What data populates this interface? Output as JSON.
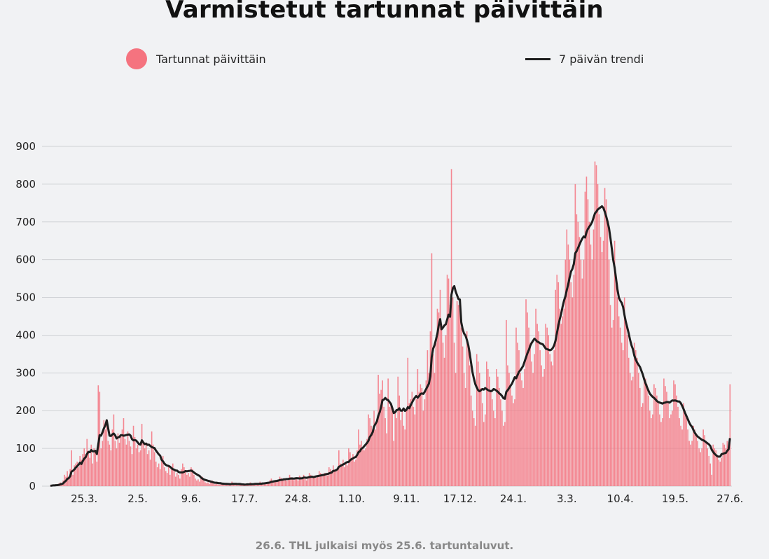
{
  "title": "Varmistetut tartunnat päivittäin",
  "legend": {
    "bars": "Tartunnat päivittäin",
    "line": "7 päivän trendi"
  },
  "note": "26.6. THL julkaisi myös 25.6. tartuntaluvut.",
  "colors": {
    "bars": "#f5737f",
    "line": "#1e1e1e",
    "grid": "#cfd1d5",
    "background": "#f1f2f4"
  },
  "chart_data": {
    "type": "bar",
    "title": "Varmistetut tartunnat päivittäin",
    "xlabel": "",
    "ylabel": "",
    "ylim": [
      0,
      900
    ],
    "yticks": [
      0,
      100,
      200,
      300,
      400,
      500,
      600,
      700,
      800,
      900
    ],
    "grid": true,
    "legend_position": "top",
    "start_date": "2020-03-01",
    "xticks": [
      {
        "date": "2020-03-25",
        "label": "25.3."
      },
      {
        "date": "2020-05-02",
        "label": "2.5."
      },
      {
        "date": "2020-06-09",
        "label": "9.6."
      },
      {
        "date": "2020-07-17",
        "label": "17.7."
      },
      {
        "date": "2020-08-24",
        "label": "24.8."
      },
      {
        "date": "2020-10-01",
        "label": "1.10."
      },
      {
        "date": "2020-11-09",
        "label": "9.11."
      },
      {
        "date": "2020-12-17",
        "label": "17.12."
      },
      {
        "date": "2021-01-24",
        "label": "24.1."
      },
      {
        "date": "2021-03-03",
        "label": "3.3."
      },
      {
        "date": "2021-04-10",
        "label": "10.4."
      },
      {
        "date": "2021-05-19",
        "label": "19.5."
      },
      {
        "date": "2021-06-27",
        "label": "27.6."
      }
    ],
    "series": [
      {
        "name": "Tartunnat päivittäin",
        "type": "bar",
        "values": [
          1,
          2,
          3,
          2,
          5,
          4,
          7,
          10,
          8,
          15,
          30,
          25,
          40,
          20,
          45,
          95,
          30,
          55,
          60,
          65,
          50,
          80,
          70,
          85,
          100,
          85,
          125,
          90,
          75,
          110,
          60,
          100,
          95,
          65,
          267,
          250,
          100,
          120,
          175,
          150,
          160,
          120,
          110,
          95,
          150,
          190,
          120,
          100,
          140,
          115,
          130,
          150,
          180,
          125,
          110,
          145,
          120,
          105,
          85,
          160,
          130,
          100,
          110,
          90,
          95,
          165,
          120,
          100,
          110,
          85,
          95,
          70,
          145,
          110,
          90,
          65,
          50,
          60,
          45,
          70,
          80,
          50,
          40,
          35,
          55,
          30,
          45,
          60,
          40,
          25,
          35,
          30,
          20,
          45,
          60,
          50,
          40,
          30,
          35,
          25,
          50,
          45,
          30,
          20,
          15,
          18,
          12,
          20,
          25,
          15,
          10,
          8,
          10,
          6,
          12,
          15,
          8,
          5,
          7,
          5,
          4,
          10,
          8,
          6,
          3,
          5,
          4,
          3,
          8,
          12,
          6,
          5,
          3,
          2,
          4,
          7,
          6,
          5,
          3,
          4,
          5,
          3,
          10,
          8,
          4,
          6,
          5,
          6,
          4,
          12,
          8,
          10,
          7,
          9,
          10,
          8,
          16,
          20,
          14,
          12,
          15,
          12,
          15,
          25,
          22,
          18,
          20,
          17,
          14,
          18,
          30,
          24,
          20,
          16,
          22,
          18,
          15,
          28,
          25,
          22,
          30,
          20,
          15,
          20,
          35,
          30,
          25,
          22,
          28,
          22,
          25,
          40,
          35,
          30,
          28,
          35,
          30,
          28,
          50,
          45,
          40,
          55,
          38,
          40,
          45,
          95,
          60,
          55,
          70,
          50,
          60,
          55,
          100,
          90,
          75,
          85,
          65,
          70,
          95,
          150,
          110,
          120,
          100,
          95,
          100,
          125,
          190,
          180,
          160,
          150,
          200,
          150,
          170,
          295,
          245,
          255,
          280,
          210,
          180,
          140,
          285,
          210,
          220,
          200,
          120,
          195,
          180,
          290,
          240,
          175,
          200,
          160,
          150,
          200,
          340,
          220,
          230,
          250,
          210,
          190,
          230,
          310,
          250,
          270,
          260,
          200,
          230,
          280,
          360,
          300,
          410,
          617,
          350,
          300,
          380,
          470,
          460,
          520,
          430,
          380,
          340,
          400,
          560,
          550,
          480,
          840,
          500,
          380,
          300,
          490,
          480,
          470,
          420,
          370,
          300,
          260,
          410,
          380,
          320,
          240,
          200,
          180,
          160,
          350,
          330,
          300,
          260,
          220,
          170,
          190,
          330,
          310,
          290,
          250,
          230,
          200,
          180,
          310,
          290,
          260,
          230,
          200,
          160,
          170,
          440,
          320,
          300,
          270,
          240,
          220,
          230,
          420,
          380,
          360,
          300,
          280,
          260,
          310,
          495,
          460,
          420,
          380,
          330,
          300,
          350,
          470,
          430,
          410,
          360,
          320,
          290,
          310,
          430,
          420,
          400,
          350,
          330,
          320,
          360,
          520,
          560,
          540,
          470,
          430,
          450,
          470,
          600,
          680,
          640,
          600,
          540,
          500,
          560,
          800,
          720,
          700,
          660,
          600,
          550,
          600,
          780,
          820,
          760,
          700,
          640,
          600,
          680,
          860,
          850,
          800,
          720,
          660,
          620,
          650,
          790,
          760,
          700,
          600,
          480,
          420,
          440,
          650,
          560,
          500,
          450,
          420,
          380,
          360,
          500,
          430,
          400,
          340,
          300,
          280,
          290,
          380,
          360,
          340,
          300,
          260,
          210,
          220,
          290,
          285,
          270,
          240,
          200,
          180,
          190,
          270,
          260,
          240,
          220,
          190,
          170,
          180,
          285,
          265,
          250,
          220,
          180,
          190,
          200,
          280,
          270,
          240,
          210,
          180,
          160,
          150,
          220,
          200,
          180,
          150,
          120,
          110,
          120,
          160,
          150,
          140,
          120,
          100,
          90,
          100,
          150,
          135,
          120,
          100,
          80,
          60,
          30,
          110,
          100,
          95,
          80,
          70,
          65,
          75,
          115,
          110,
          100,
          120,
          100,
          270
        ]
      },
      {
        "name": "7 päivän trendi",
        "type": "line",
        "method": "7-day rolling average"
      }
    ]
  }
}
